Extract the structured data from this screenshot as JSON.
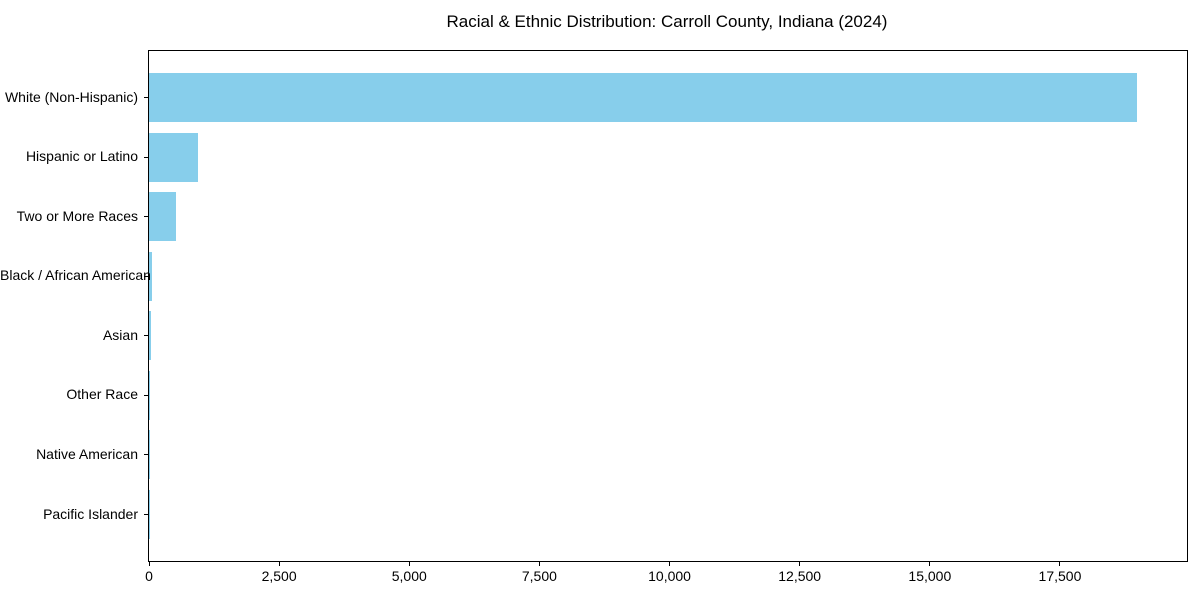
{
  "chart_data": {
    "type": "bar",
    "orientation": "horizontal",
    "title": "Racial & Ethnic Distribution: Carroll County, Indiana (2024)",
    "categories": [
      "White (Non-Hispanic)",
      "Hispanic or Latino",
      "Two or More Races",
      "Black / African American",
      "Asian",
      "Other Race",
      "Native American",
      "Pacific Islander"
    ],
    "values": [
      18980,
      940,
      520,
      65,
      30,
      12,
      8,
      2
    ],
    "xlabel": "",
    "ylabel": "",
    "xlim": [
      0,
      19940
    ],
    "xticks": [
      0,
      2500,
      5000,
      7500,
      10000,
      12500,
      15000,
      17500
    ],
    "xtick_labels": [
      "0",
      "2,500",
      "5,000",
      "7,500",
      "10,000",
      "12,500",
      "15,000",
      "17,500"
    ],
    "bar_color": "#87CEEB",
    "spine_color": "#000000",
    "grid": false,
    "legend_position": "none"
  }
}
